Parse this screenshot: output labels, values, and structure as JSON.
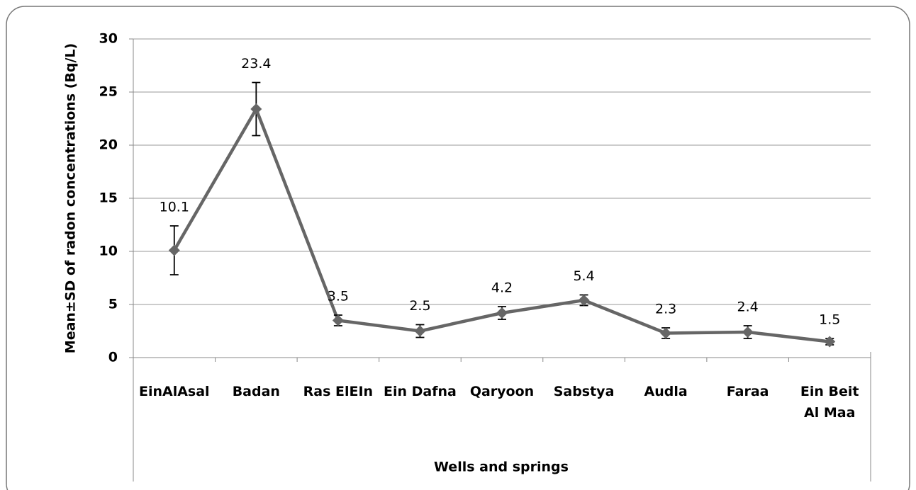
{
  "chart_data": {
    "type": "line",
    "x_label": "Wells and springs",
    "y_label": "Mean±SD of radon concentrations (Bq/L)",
    "categories": [
      "EinAlAsal",
      "Badan",
      "Ras ElEIn",
      "Ein Dafna",
      "Qaryoon",
      "Sabstya",
      "Audla",
      "Faraa",
      "Ein Beit Al Maa"
    ],
    "values": [
      10.1,
      23.4,
      3.5,
      2.5,
      4.2,
      5.4,
      2.3,
      2.4,
      1.5
    ],
    "errors": [
      2.3,
      2.5,
      0.5,
      0.6,
      0.6,
      0.5,
      0.5,
      0.6,
      0.3
    ],
    "color": "#666666",
    "ylim": [
      0,
      30
    ],
    "yticks": [
      0,
      5,
      10,
      15,
      20,
      25,
      30
    ],
    "grid": true
  }
}
